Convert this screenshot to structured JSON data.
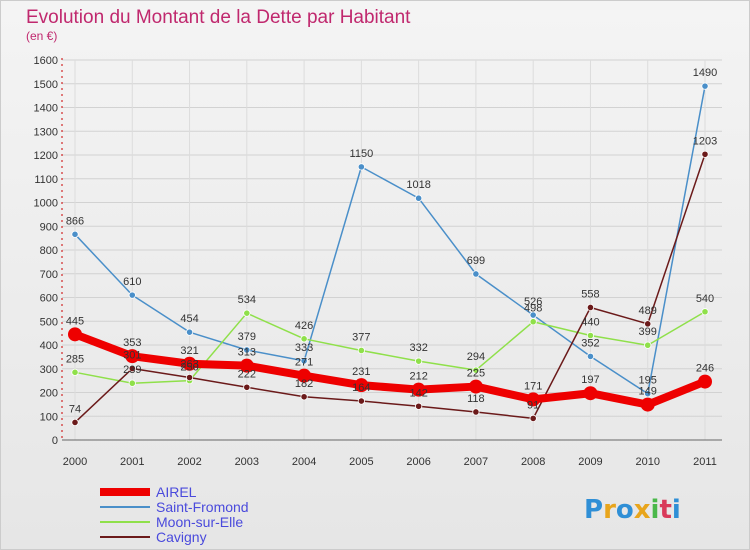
{
  "chart_data": {
    "type": "line",
    "title": "Evolution du Montant de la Dette par Habitant",
    "subtitle": "(en €)",
    "x": [
      "2000",
      "2001",
      "2002",
      "2003",
      "2004",
      "2005",
      "2006",
      "2007",
      "2008",
      "2009",
      "2010",
      "2011"
    ],
    "ylim": [
      0,
      1600
    ],
    "yticks": [
      0,
      100,
      200,
      300,
      400,
      500,
      600,
      700,
      800,
      900,
      1000,
      1100,
      1200,
      1300,
      1400,
      1500,
      1600
    ],
    "grid": true,
    "legend_position": "bottom-left",
    "series": [
      {
        "name": "AIREL",
        "color": "#ee0000",
        "values": [
          445,
          353,
          321,
          313,
          271,
          231,
          212,
          225,
          171,
          197,
          149,
          246
        ],
        "labels": [
          "445",
          "353",
          "321",
          "313",
          "271",
          "231",
          "212",
          "225",
          "171",
          "197",
          "149",
          "246"
        ]
      },
      {
        "name": "Saint-Fromond",
        "color": "#4a8fc9",
        "values": [
          866,
          610,
          454,
          379,
          333,
          1150,
          1018,
          699,
          526,
          352,
          195,
          1490
        ],
        "labels": [
          "866",
          "610",
          "454",
          "379",
          "333",
          "1150",
          "1018",
          "699",
          "526",
          "352",
          "195",
          "1490"
        ]
      },
      {
        "name": "Moon-sur-Elle",
        "color": "#8fe04a",
        "values": [
          285,
          239,
          250,
          534,
          426,
          377,
          332,
          294,
          498,
          440,
          399,
          540
        ],
        "labels": [
          "285",
          "239",
          "250",
          "534",
          "426",
          "377",
          "332",
          "294",
          "498",
          "440",
          "399",
          "540"
        ]
      },
      {
        "name": "Cavigny",
        "color": "#6b1a1a",
        "values": [
          74,
          301,
          263,
          222,
          182,
          164,
          142,
          118,
          91,
          558,
          489,
          1203
        ],
        "labels": [
          "74",
          "301",
          "263",
          "222",
          "182",
          "164",
          "142",
          "118",
          "91",
          "558",
          "489",
          "1203"
        ]
      }
    ]
  },
  "branding": {
    "logo_text": "Proxiti"
  }
}
